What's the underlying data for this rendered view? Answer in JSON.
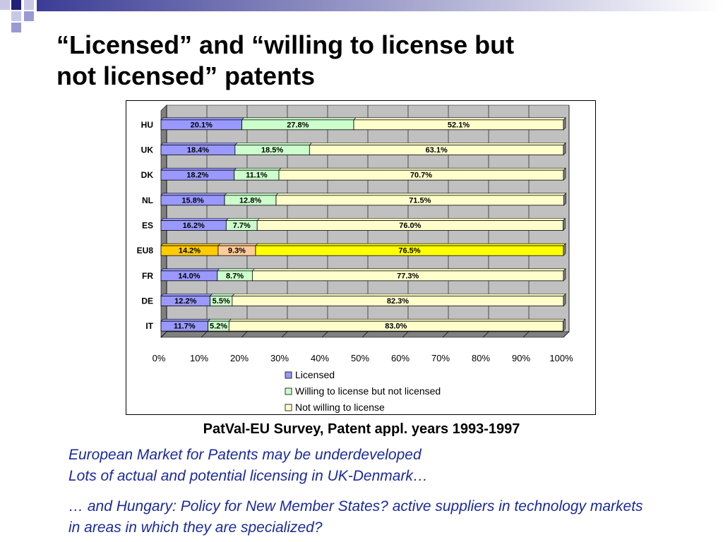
{
  "title": {
    "line1": "“Licensed” and “willing to license but",
    "line2": "not licensed” patents"
  },
  "chart_data": {
    "type": "bar",
    "orientation": "horizontal",
    "stacked": "percent",
    "categories": [
      "HU",
      "UK",
      "DK",
      "NL",
      "ES",
      "EU8",
      "FR",
      "DE",
      "IT"
    ],
    "series": [
      {
        "name": "Licensed",
        "values": [
          20.1,
          18.4,
          18.2,
          15.8,
          16.2,
          14.2,
          14.0,
          12.2,
          11.7
        ],
        "labels": [
          "20.1%",
          "18.4%",
          "18.2%",
          "15.8%",
          "16.2%",
          "14.2%",
          "14.0%",
          "12.2%",
          "11.7%"
        ]
      },
      {
        "name": "Willing to license but not licensed",
        "values": [
          27.8,
          18.5,
          11.1,
          12.8,
          7.7,
          9.3,
          8.7,
          5.5,
          5.2
        ],
        "labels": [
          "27.8%",
          "18.5%",
          "11.1%",
          "12.8%",
          "7.7%",
          "9.3%",
          "8.7%",
          "5.5%",
          "5.2%"
        ]
      },
      {
        "name": "Not willing to license",
        "values": [
          52.1,
          63.1,
          70.7,
          71.5,
          76.0,
          76.5,
          77.3,
          82.3,
          83.0
        ],
        "labels": [
          "52.1%",
          "63.1%",
          "70.7%",
          "71.5%",
          "76.0%",
          "76.5%",
          "77.3%",
          "82.3%",
          "83.0%"
        ]
      }
    ],
    "xlim": [
      0,
      100
    ],
    "xticks": [
      "0%",
      "10%",
      "20%",
      "30%",
      "40%",
      "50%",
      "60%",
      "70%",
      "80%",
      "90%",
      "100%"
    ],
    "grid": true,
    "legend_position": "bottom",
    "colors": {
      "series": [
        "#9999ff",
        "#ccffcc",
        "#ffffcc"
      ],
      "highlight_category": "EU8",
      "highlight_series": [
        "#ffcc00",
        "#ffcc99",
        "#ffff00"
      ],
      "walls": "#c0c0c0",
      "wall_side": "#808080"
    }
  },
  "caption": "PatVal-EU Survey, Patent appl. years 1993-1997",
  "notes": [
    "European Market for Patents may be underdeveloped",
    "Lots of actual and potential licensing in UK-Denmark…",
    "… and Hungary: Policy for New Member States? active suppliers in technology markets in areas in which they are specialized?"
  ]
}
